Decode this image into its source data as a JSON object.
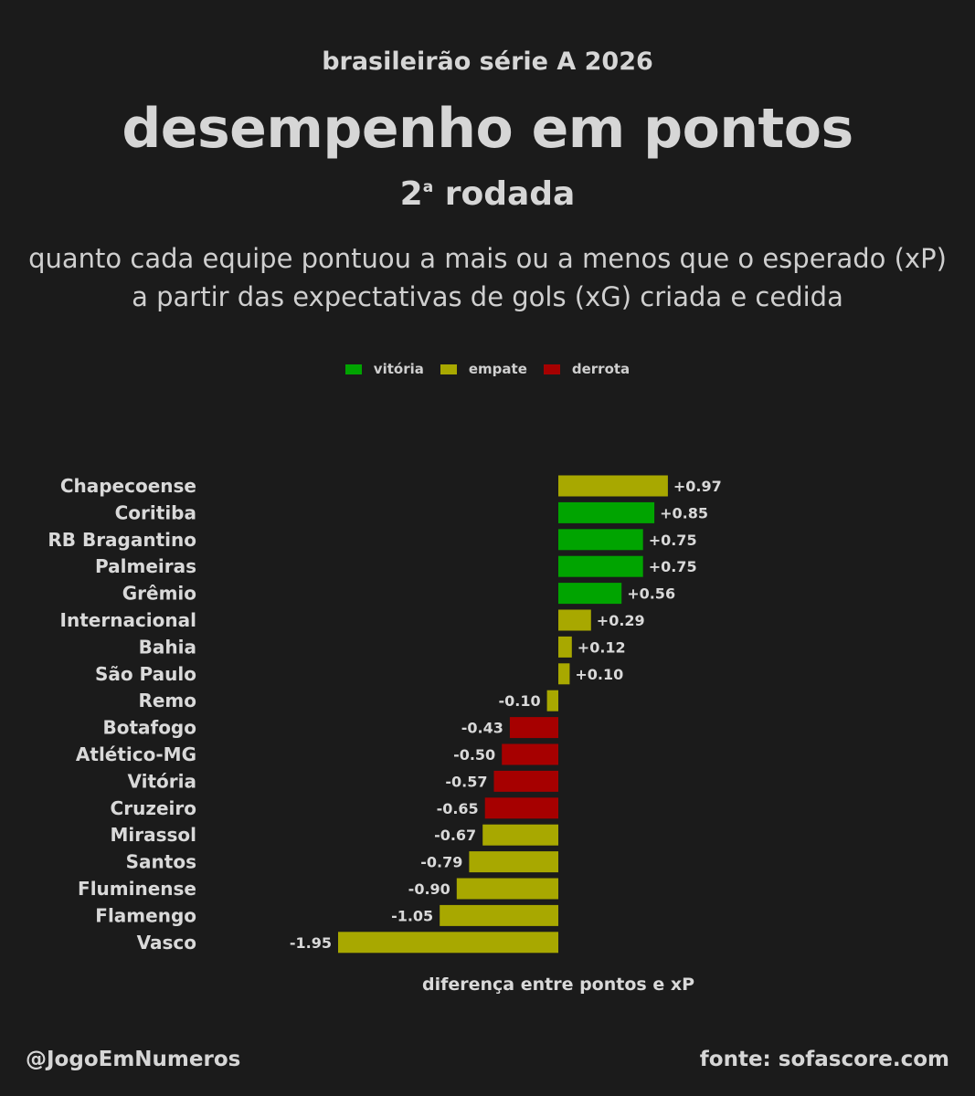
{
  "header": {
    "supertitle": "brasileirão série A 2026",
    "title": "desempenho em pontos",
    "round_number": "2",
    "round_suffix": "a",
    "round_word": "rodada",
    "subtitle_line1": "quanto cada equipe pontuou a mais ou a menos que o esperado (xP)",
    "subtitle_line2": "a partir das expectativas de gols (xG) criada e cedida"
  },
  "legend": [
    {
      "label": "vitória",
      "color": "#00a400"
    },
    {
      "label": "empate",
      "color": "#a8a800"
    },
    {
      "label": "derrota",
      "color": "#a60000"
    }
  ],
  "colors": {
    "vitória": "#00a400",
    "empate": "#a8a800",
    "derrota": "#a60000"
  },
  "chart_data": {
    "type": "bar",
    "orientation": "horizontal",
    "xlabel": "diferença entre pontos e xP",
    "categories": [
      "Chapecoense",
      "Coritiba",
      "RB Bragantino",
      "Palmeiras",
      "Grêmio",
      "Internacional",
      "Bahia",
      "São Paulo",
      "Remo",
      "Botafogo",
      "Atlético-MG",
      "Vitória",
      "Cruzeiro",
      "Mirassol",
      "Santos",
      "Fluminense",
      "Flamengo",
      "Vasco"
    ],
    "values": [
      0.97,
      0.85,
      0.75,
      0.75,
      0.56,
      0.29,
      0.12,
      0.1,
      -0.1,
      -0.43,
      -0.5,
      -0.57,
      -0.65,
      -0.67,
      -0.79,
      -0.9,
      -1.05,
      -1.95
    ],
    "labels": [
      "+0.97",
      "+0.85",
      "+0.75",
      "+0.75",
      "+0.56",
      "+0.29",
      "+0.12",
      "+0.10",
      "-0.10",
      "-0.43",
      "-0.50",
      "-0.57",
      "-0.65",
      "-0.67",
      "-0.79",
      "-0.90",
      "-1.05",
      "-1.95"
    ],
    "results": [
      "empate",
      "vitória",
      "vitória",
      "vitória",
      "vitória",
      "empate",
      "empate",
      "empate",
      "empate",
      "derrota",
      "derrota",
      "derrota",
      "derrota",
      "empate",
      "empate",
      "empate",
      "empate",
      "empate"
    ],
    "legend_position": "top-center",
    "grid": false
  },
  "footer": {
    "handle": "@JogoEmNumeros",
    "source": "fonte: sofascore.com"
  }
}
